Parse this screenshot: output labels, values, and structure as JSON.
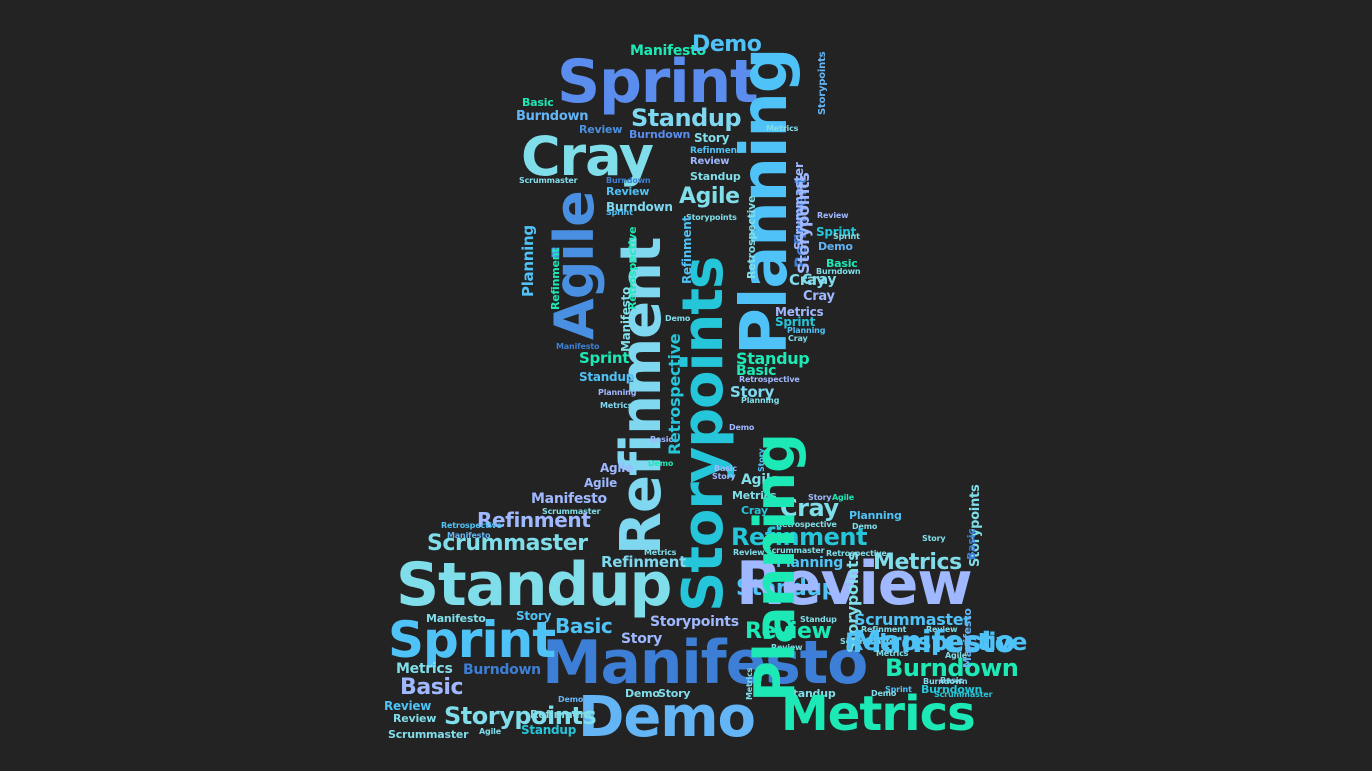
{
  "palette": {
    "background": "#232323",
    "c1": "#5b8def",
    "c2": "#4fc3f7",
    "c3": "#80deea",
    "c4": "#1de9b6",
    "c5": "#3d7fd6",
    "c6": "#64b5f6",
    "c7": "#9fb8ff",
    "c8": "#26c6da",
    "c9": "#4a90e2",
    "c10": "#7fd8f0"
  },
  "words": [
    "Sprint",
    "Planning",
    "Cray",
    "Agile",
    "Refinment",
    "Storypoints",
    "Standup",
    "Demo",
    "Manifesto",
    "Refinment",
    "Manifesto",
    "Storypoints",
    "Cray",
    "Demo",
    "Standup",
    "Basic",
    "Burndown",
    "Review",
    "Burndown",
    "Story",
    "Metrics",
    "Storypoints",
    "Refinment",
    "Review",
    "Standup",
    "Scrummaster",
    "Burndown",
    "Review",
    "Burndown",
    "Agile",
    "Sprint",
    "Storypoints",
    "Scrummaster",
    "Review",
    "Sprint",
    "Sprint",
    "Demo",
    "Basic",
    "Burndown",
    "Cray",
    "Cray",
    "Planning",
    "Refinment",
    "Refinment",
    "Retrospective",
    "Retrospective",
    "Manifesto",
    "Metrics",
    "Sprint",
    "Planning",
    "Cray",
    "Demo",
    "Manifesto",
    "Sprint",
    "Standup",
    "Basic",
    "Standup",
    "Retrospective",
    "Planning",
    "Story",
    "Metrics",
    "Planning",
    "Demo",
    "Retrospective",
    "Basic",
    "Agile",
    "Story",
    "Demo",
    "Basic",
    "Agile",
    "Story",
    "Agile",
    "Manifesto",
    "Metrics",
    "Cray",
    "Cray",
    "Story",
    "Agile",
    "Scrummaster",
    "Planning",
    "Refinment",
    "Retrospective",
    "Demo",
    "Retrospective",
    "Story",
    "Manifesto",
    "Scrummaster",
    "Metrics",
    "Review",
    "Scrummaster",
    "Refinment",
    "Retrospective",
    "Refinment",
    "Planning",
    "Metrics",
    "Standup",
    "Review",
    "Storypoints",
    "Basic",
    "Review",
    "Manifesto",
    "Story",
    "Story",
    "Storypoints",
    "Basic",
    "Scrummaster",
    "Review",
    "Review",
    "Refinment",
    "Scrummaster",
    "Burndown",
    "Storypoints",
    "Standup",
    "Retrospective",
    "Manifesto",
    "Metrics",
    "Burndown",
    "Burndown",
    "Sprint",
    "Sprint",
    "Basic",
    "Manifesto",
    "Basic",
    "Agile",
    "Story",
    "Burndown",
    "Metrics",
    "Demo",
    "Scrummaster",
    "Demo",
    "Standup",
    "Metrics",
    "Review",
    "Refinment",
    "Agile",
    "Standup",
    "Scrummaster",
    "Planning",
    "Review",
    "Storypoints",
    "Demo",
    "Metrics"
  ]
}
